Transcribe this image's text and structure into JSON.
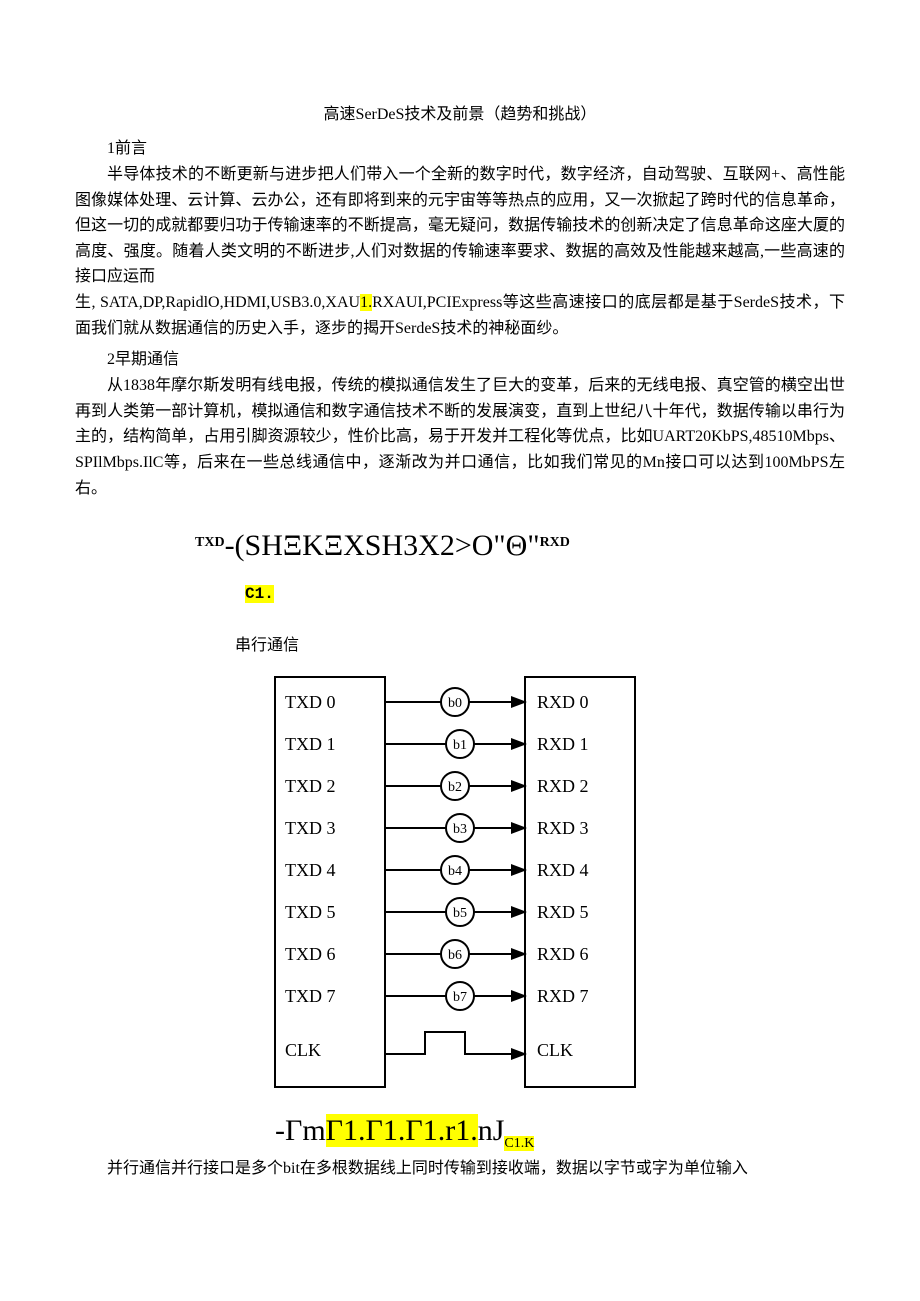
{
  "title": "高速SerDeS技术及前景（趋势和挑战）",
  "s1_head": "1前言",
  "p1": "半导体技术的不断更新与进步把人们带入一个全新的数字时代，数字经济，自动驾驶、互联网+、高性能图像媒体处理、云计算、云办公，还有即将到来的元宇宙等等热点的应用，又一次掀起了跨时代的信息革命，但这一切的成就都要归功于传输速率的不断提高，毫无疑问，数据传输技术的创新决定了信息革命这座大厦的高度、强度。随着人类文明的不断进步,人们对数据的传输速率要求、数据的高效及性能越来越高,一些高速的接口应运而",
  "p1b_pre": "生, SATA,DP,RapidlO,HDMI,USB3.0,XAU",
  "p1b_hl": "1.",
  "p1b_post": "RXAUI,PCIExpress等这些高速接口的底层都是基于SerdeS技术，下面我们就从数据通信的历史入手，逐步的揭开SerdeS技术的神秘面纱。",
  "s2_head": "2早期通信",
  "p2": "从1838年摩尔斯发明有线电报，传统的模拟通信发生了巨大的变革，后来的无线电报、真空管的横空出世再到人类第一部计算机，模拟通信和数字通信技术不断的发展演变，直到上世纪八十年代，数据传输以串行为主的，结构简单，占用引脚资源较少，性价比高，易于开发并工程化等优点，比如UART20KbPS,48510Mbps、SPIlMbps.IlC等，后来在一些总线通信中，逐渐改为并口通信，比如我们常见的Mn接口可以达到100MbPS左右。",
  "f1_sup1": "TXD",
  "f1_mid": "-(SHΞKΞXSH3X2>O\"Θ\"",
  "f1_sup2": "RXD",
  "c1_text": "C1.",
  "serial_label": "串行通信",
  "diagram": {
    "rows": [
      {
        "tx": "TXD 0",
        "b": "b0",
        "rx": "RXD 0"
      },
      {
        "tx": "TXD 1",
        "b": "b1",
        "rx": "RXD 1"
      },
      {
        "tx": "TXD 2",
        "b": "b2",
        "rx": "RXD 2"
      },
      {
        "tx": "TXD 3",
        "b": "b3",
        "rx": "RXD 3"
      },
      {
        "tx": "TXD 4",
        "b": "b4",
        "rx": "RXD 4"
      },
      {
        "tx": "TXD 5",
        "b": "b5",
        "rx": "RXD 5"
      },
      {
        "tx": "TXD 6",
        "b": "b6",
        "rx": "RXD 6"
      },
      {
        "tx": "TXD 7",
        "b": "b7",
        "rx": "RXD 7"
      }
    ],
    "clk": "CLK",
    "font": "Times New Roman",
    "stroke": "#000000",
    "fontsize": 18
  },
  "f2_pre": "-Γm",
  "f2_hl1": "Γ1.",
  "f2_hl2": "Γ1.",
  "f2_hl3": "Γ1.",
  "f2_hl4": "r1.",
  "f2_mid": "nJ",
  "f2_sub": "C1.K",
  "p_last": "并行通信并行接口是多个bit在多根数据线上同时传输到接收端，数据以字节或字为单位输入",
  "colors": {
    "text": "#000000",
    "highlight": "#ffff00",
    "bg": "#ffffff"
  }
}
